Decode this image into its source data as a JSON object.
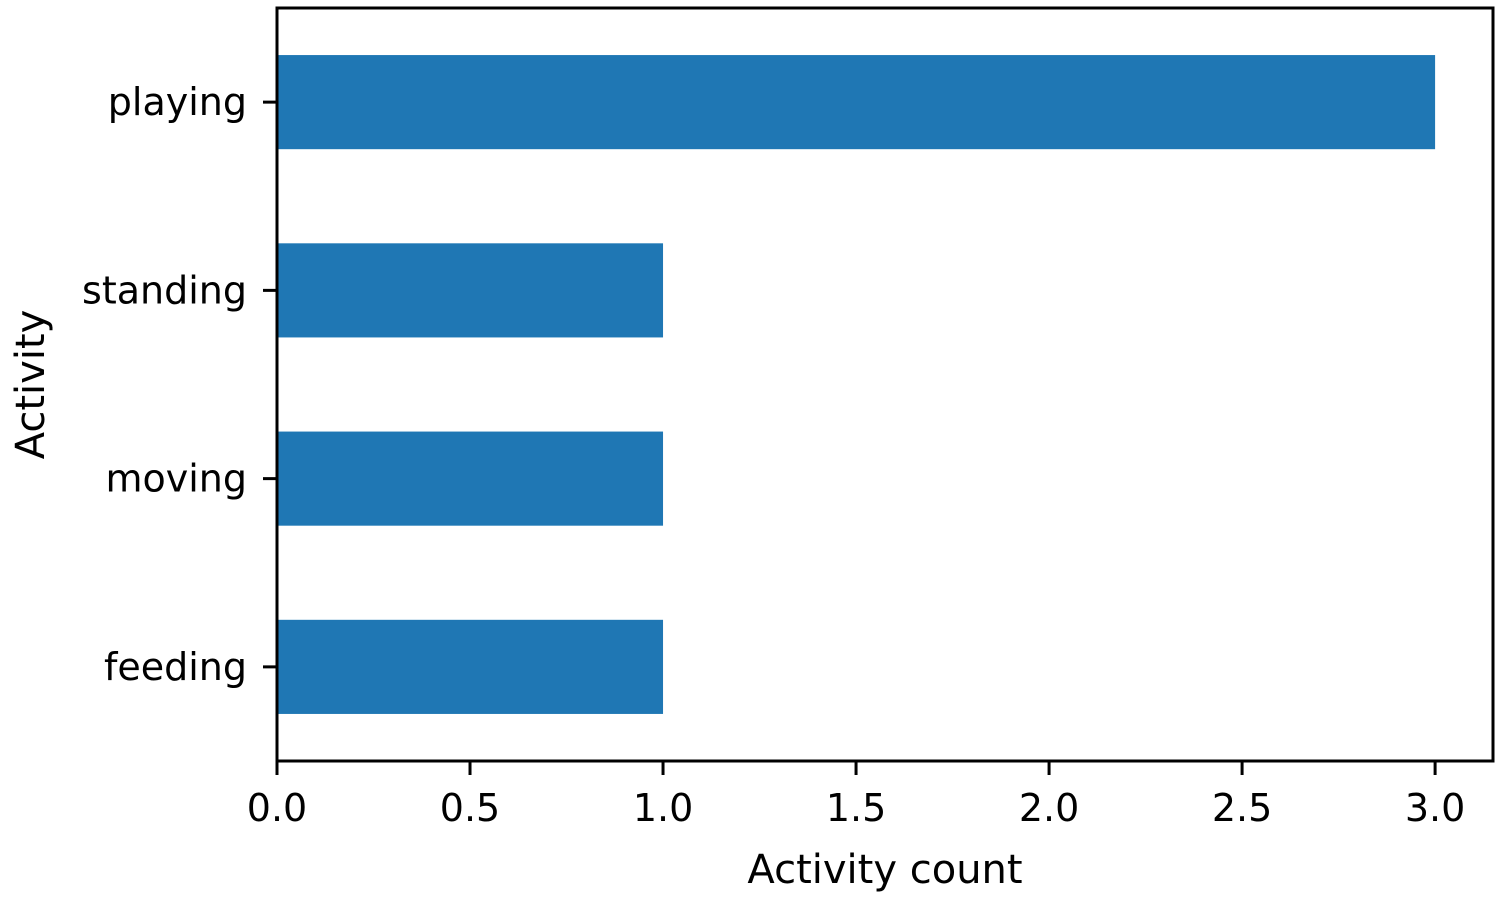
{
  "chart_data": {
    "type": "bar",
    "orientation": "horizontal",
    "categories": [
      "playing",
      "standing",
      "moving",
      "feeding"
    ],
    "values": [
      3,
      1,
      1,
      1
    ],
    "title": "",
    "xlabel": "Activity count",
    "ylabel": "Activity",
    "xlim": [
      0,
      3.15
    ],
    "xticks": [
      0.0,
      0.5,
      1.0,
      1.5,
      2.0,
      2.5,
      3.0
    ],
    "xtick_labels": [
      "0.0",
      "0.5",
      "1.0",
      "1.5",
      "2.0",
      "2.5",
      "3.0"
    ],
    "grid": false,
    "legend": "none",
    "bar_color": "#1f77b4"
  }
}
